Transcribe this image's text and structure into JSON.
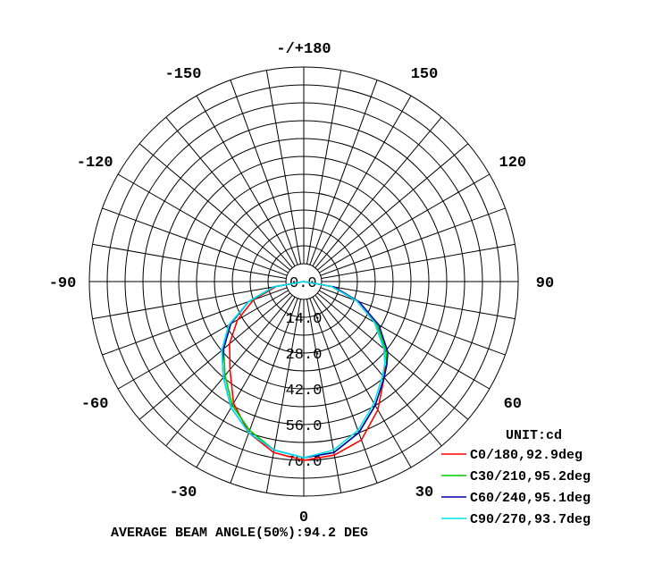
{
  "chart_data": {
    "type": "polar",
    "unit_label": "UNIT:cd",
    "footer": "AVERAGE BEAM ANGLE(50%):94.2 DEG",
    "radial_range": [
      0,
      84
    ],
    "radial_ticks": [
      {
        "value": 0,
        "label": "0.0"
      },
      {
        "value": 14,
        "label": "14.0"
      },
      {
        "value": 28,
        "label": "28.0"
      },
      {
        "value": 42,
        "label": "42.0"
      },
      {
        "value": 56,
        "label": "56.0"
      },
      {
        "value": 70,
        "label": "70.0"
      }
    ],
    "angle_labels": [
      {
        "angle": 180,
        "label": "-/+180"
      },
      {
        "angle": 150,
        "label": "150"
      },
      {
        "angle": -150,
        "label": "-150"
      },
      {
        "angle": 120,
        "label": "120"
      },
      {
        "angle": -120,
        "label": "-120"
      },
      {
        "angle": 90,
        "label": "90"
      },
      {
        "angle": -90,
        "label": "-90"
      },
      {
        "angle": 60,
        "label": "60"
      },
      {
        "angle": -60,
        "label": "-60"
      },
      {
        "angle": 30,
        "label": "30"
      },
      {
        "angle": -30,
        "label": "-30"
      },
      {
        "angle": 0,
        "label": "0"
      }
    ],
    "angles": [
      -90,
      -80,
      -70,
      -60,
      -50,
      -45,
      -40,
      -30,
      -20,
      -10,
      0,
      10,
      20,
      30,
      40,
      45,
      50,
      60,
      70,
      80,
      90
    ],
    "series": [
      {
        "name": "C0/180,92.9deg",
        "color": "#ff0000",
        "values": [
          0,
          11,
          21,
          30,
          38,
          41,
          45,
          55,
          63,
          68,
          70,
          69,
          66,
          58,
          49,
          45,
          41,
          32,
          22,
          11,
          0
        ]
      },
      {
        "name": "C30/210,95.2deg",
        "color": "#00cc00",
        "values": [
          0,
          12,
          23,
          33,
          41,
          44,
          48,
          56,
          62,
          67,
          69,
          68,
          63,
          56,
          49,
          46,
          42,
          33,
          23,
          12,
          0
        ]
      },
      {
        "name": "C60/240,95.1deg",
        "color": "#0000aa",
        "values": [
          0,
          12,
          23,
          33,
          41,
          45,
          49,
          57,
          63,
          67,
          69,
          68,
          63,
          56,
          49,
          46,
          43,
          34,
          23,
          12,
          0
        ]
      },
      {
        "name": "C90/270,93.7deg",
        "color": "#00e5ee",
        "values": [
          0,
          12,
          23,
          34,
          42,
          45,
          49,
          57,
          63,
          67,
          69,
          67,
          62,
          55,
          48,
          45,
          41,
          32,
          22,
          11,
          0
        ]
      }
    ]
  }
}
